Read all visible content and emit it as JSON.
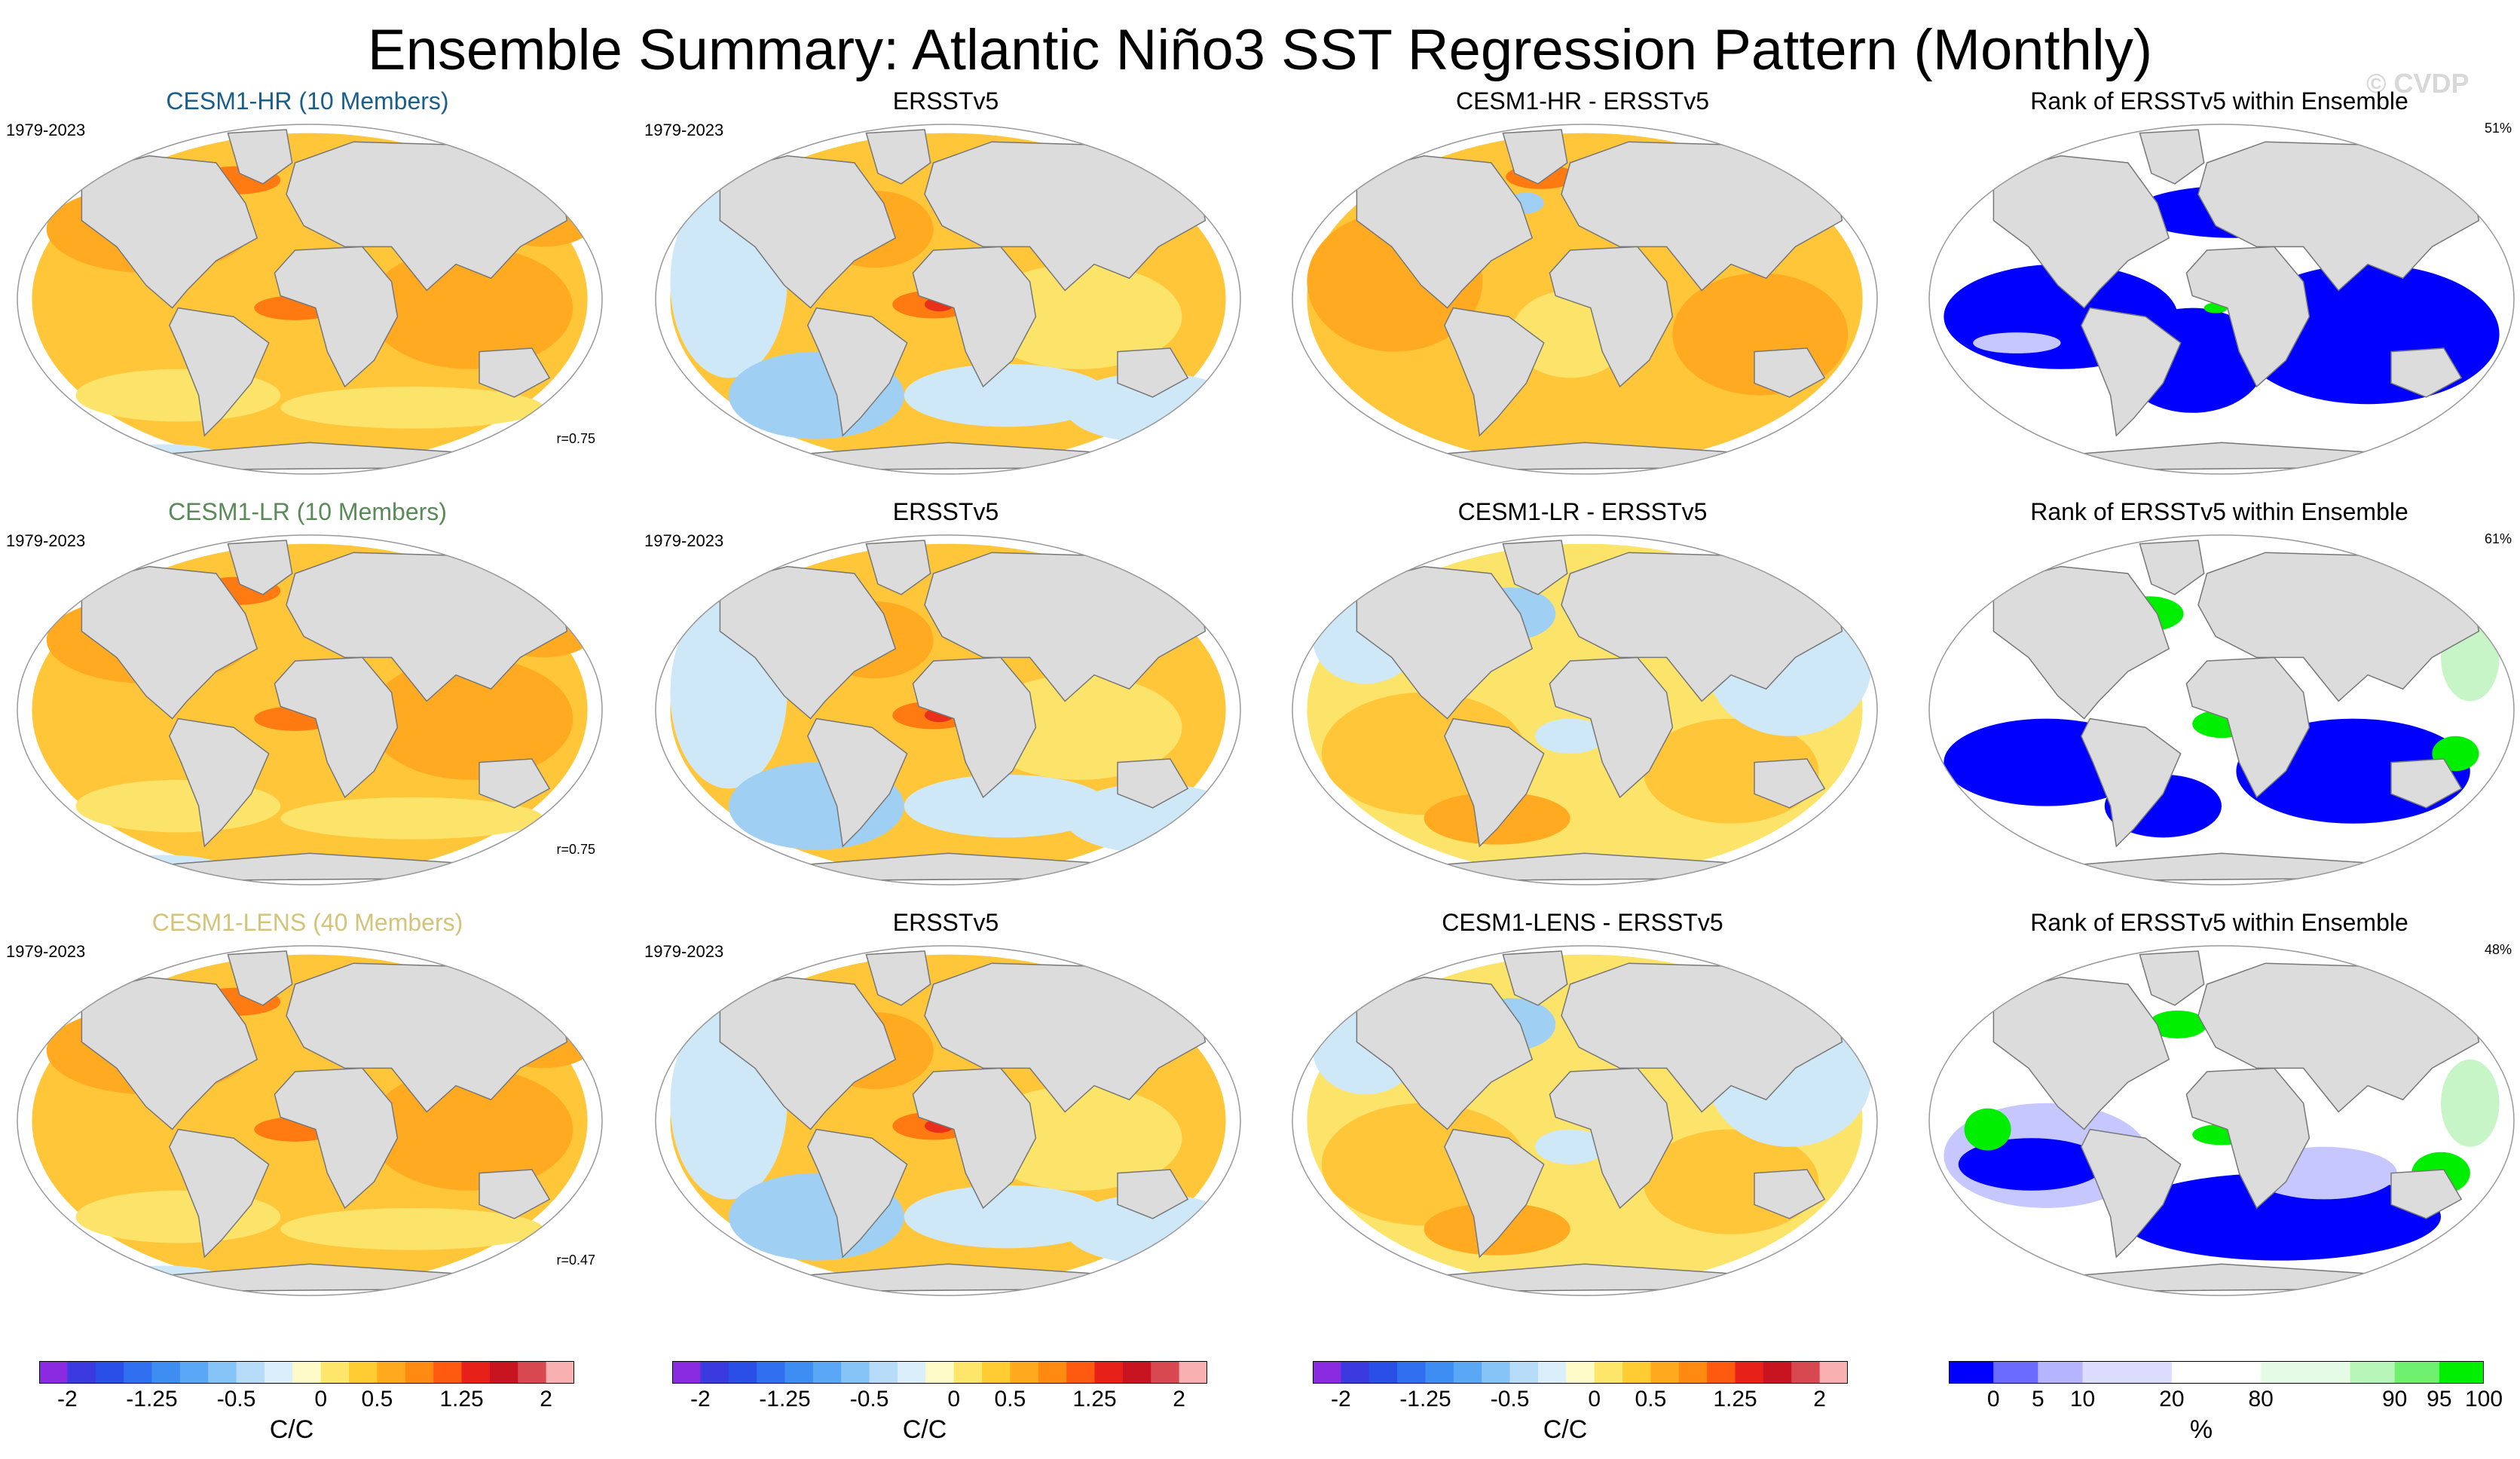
{
  "figure": {
    "title": "Ensemble Summary: Atlantic Niño3 SST Regression Pattern (Monthly)",
    "copyright": "© CVDP"
  },
  "colors": {
    "ocean_base": "#ffd24a",
    "land": "#dcdcdc",
    "coast": "#777777",
    "warm_1": "#fce36a",
    "warm_2": "#ffc63a",
    "warm_3": "#ffaa20",
    "warm_4": "#ff7a10",
    "warm_5": "#e8301a",
    "cool_1": "#fff7b8",
    "cool_2": "#cfe8f7",
    "cool_3": "#9fd0f3",
    "cool_4": "#6fb2f0",
    "rank_blue": "#0000ff",
    "rank_lightblue": "#c7c7ff",
    "rank_green": "#00ee00",
    "rank_lightgreen": "#c8f5c8",
    "title_hr": "#1a5f8c",
    "title_lr": "#5a8a5a",
    "title_lens": "#d4c47a"
  },
  "rows": [
    {
      "panels": [
        {
          "title": "CESM1-HR (10 Members)",
          "title_color": "title_hr",
          "period": "1979-2023",
          "stat": "",
          "r": "r=0.75",
          "kind": "model"
        },
        {
          "title": "ERSSTv5",
          "title_color": "",
          "period": "1979-2023",
          "stat": "",
          "r": "",
          "kind": "obs"
        },
        {
          "title": "CESM1-HR - ERSSTv5",
          "title_color": "",
          "period": "",
          "stat": "",
          "r": "",
          "kind": "diff_warm"
        },
        {
          "title": "Rank of ERSSTv5 within Ensemble",
          "title_color": "",
          "period": "",
          "stat": "51%",
          "r": "",
          "kind": "rank_blue"
        }
      ]
    },
    {
      "panels": [
        {
          "title": "CESM1-LR (10 Members)",
          "title_color": "title_lr",
          "period": "1979-2023",
          "stat": "",
          "r": "r=0.75",
          "kind": "model"
        },
        {
          "title": "ERSSTv5",
          "title_color": "",
          "period": "1979-2023",
          "stat": "",
          "r": "",
          "kind": "obs"
        },
        {
          "title": "CESM1-LR - ERSSTv5",
          "title_color": "",
          "period": "",
          "stat": "",
          "r": "",
          "kind": "diff_mixed"
        },
        {
          "title": "Rank of ERSSTv5 within Ensemble",
          "title_color": "",
          "period": "",
          "stat": "61%",
          "r": "",
          "kind": "rank_mixed"
        }
      ]
    },
    {
      "panels": [
        {
          "title": "CESM1-LENS (40 Members)",
          "title_color": "title_lens",
          "period": "1979-2023",
          "stat": "",
          "r": "r=0.47",
          "kind": "model"
        },
        {
          "title": "ERSSTv5",
          "title_color": "",
          "period": "1979-2023",
          "stat": "",
          "r": "",
          "kind": "obs"
        },
        {
          "title": "CESM1-LENS - ERSSTv5",
          "title_color": "",
          "period": "",
          "stat": "",
          "r": "",
          "kind": "diff_mixed"
        },
        {
          "title": "Rank of ERSSTv5 within Ensemble",
          "title_color": "",
          "period": "",
          "stat": "48%",
          "r": "",
          "kind": "rank_soft"
        }
      ]
    }
  ],
  "colorbars": [
    {
      "unit": "C/C",
      "labels": [
        "-2",
        "-1.25",
        "-0.5",
        "0",
        "0.5",
        "1.25",
        "2"
      ],
      "label_positions": [
        0,
        3,
        6,
        9,
        11,
        14,
        17
      ],
      "colors": [
        "#8a2be2",
        "#3a3adf",
        "#2a4fe6",
        "#2f6ff0",
        "#3d8df2",
        "#5aa8f5",
        "#86c3f7",
        "#b6dcf9",
        "#dbeefb",
        "#fffbc8",
        "#fde66a",
        "#ffcc33",
        "#ffaa1e",
        "#ff8a12",
        "#ff5a10",
        "#e8201a",
        "#c81420",
        "#d84850",
        "#f8b0b0"
      ]
    },
    {
      "unit": "C/C",
      "labels": [
        "-2",
        "-1.25",
        "-0.5",
        "0",
        "0.5",
        "1.25",
        "2"
      ],
      "label_positions": [
        0,
        3,
        6,
        9,
        11,
        14,
        17
      ],
      "colors": [
        "#8a2be2",
        "#3a3adf",
        "#2a4fe6",
        "#2f6ff0",
        "#3d8df2",
        "#5aa8f5",
        "#86c3f7",
        "#b6dcf9",
        "#dbeefb",
        "#fffbc8",
        "#fde66a",
        "#ffcc33",
        "#ffaa1e",
        "#ff8a12",
        "#ff5a10",
        "#e8201a",
        "#c81420",
        "#d84850",
        "#f8b0b0"
      ]
    },
    {
      "unit": "C/C",
      "labels": [
        "-2",
        "-1.25",
        "-0.5",
        "0",
        "0.5",
        "1.25",
        "2"
      ],
      "label_positions": [
        0,
        3,
        6,
        9,
        11,
        14,
        17
      ],
      "colors": [
        "#8a2be2",
        "#3a3adf",
        "#2a4fe6",
        "#2f6ff0",
        "#3d8df2",
        "#5aa8f5",
        "#86c3f7",
        "#b6dcf9",
        "#dbeefb",
        "#fffbc8",
        "#fde66a",
        "#ffcc33",
        "#ffaa1e",
        "#ff8a12",
        "#ff5a10",
        "#e8201a",
        "#c81420",
        "#d84850",
        "#f8b0b0"
      ]
    },
    {
      "unit": "%",
      "labels": [
        "0",
        "5",
        "10",
        "20",
        "80",
        "90",
        "95",
        "100"
      ],
      "label_positions": [
        0,
        1,
        2,
        4,
        6,
        9,
        10,
        11
      ],
      "colors": [
        "#0000ff",
        "#6b6bff",
        "#b5b5ff",
        "#dcdcff",
        "#dcdcff",
        "#ffffff",
        "#ffffff",
        "#e6fbe6",
        "#e6fbe6",
        "#b8f5b8",
        "#6ff06f",
        "#00ee00"
      ]
    }
  ]
}
